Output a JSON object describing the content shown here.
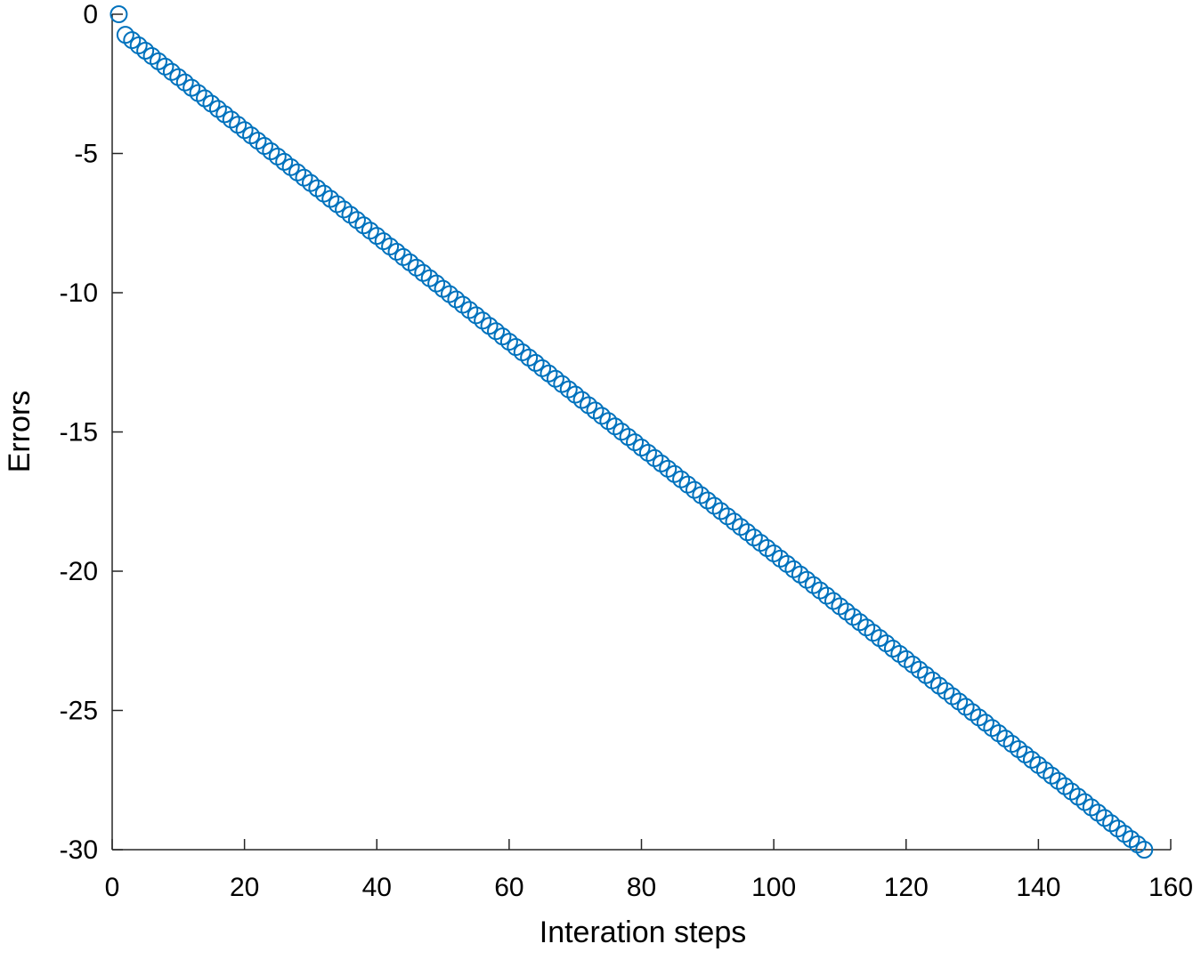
{
  "chart_data": {
    "type": "scatter",
    "xlabel": "Interation steps",
    "ylabel": "Errors",
    "color": "#0072bd",
    "x": [
      1,
      2,
      3,
      4,
      5,
      6,
      7,
      8,
      9,
      10,
      11,
      12,
      13,
      14,
      15,
      16,
      17,
      18,
      19,
      20,
      21,
      22,
      23,
      24,
      25,
      26,
      27,
      28,
      29,
      30,
      31,
      32,
      33,
      34,
      35,
      36,
      37,
      38,
      39,
      40,
      41,
      42,
      43,
      44,
      45,
      46,
      47,
      48,
      49,
      50,
      51,
      52,
      53,
      54,
      55,
      56,
      57,
      58,
      59,
      60,
      61,
      62,
      63,
      64,
      65,
      66,
      67,
      68,
      69,
      70,
      71,
      72,
      73,
      74,
      75,
      76,
      77,
      78,
      79,
      80,
      81,
      82,
      83,
      84,
      85,
      86,
      87,
      88,
      89,
      90,
      91,
      92,
      93,
      94,
      95,
      96,
      97,
      98,
      99,
      100,
      101,
      102,
      103,
      104,
      105,
      106,
      107,
      108,
      109,
      110,
      111,
      112,
      113,
      114,
      115,
      116,
      117,
      118,
      119,
      120,
      121,
      122,
      123,
      124,
      125,
      126,
      127,
      128,
      129,
      130,
      131,
      132,
      133,
      134,
      135,
      136,
      137,
      138,
      139,
      140,
      141,
      142,
      143,
      144,
      145,
      146,
      147,
      148,
      149,
      150,
      151,
      152,
      153,
      154,
      155,
      156
    ],
    "values": [
      0,
      -0.74,
      -0.93,
      -1.12,
      -1.31,
      -1.5,
      -1.69,
      -1.88,
      -2.07,
      -2.26,
      -2.45,
      -2.64,
      -2.83,
      -3.02,
      -3.21,
      -3.4,
      -3.59,
      -3.78,
      -3.97,
      -4.16,
      -4.35,
      -4.54,
      -4.73,
      -4.92,
      -5.11,
      -5.3,
      -5.49,
      -5.68,
      -5.87,
      -6.06,
      -6.25,
      -6.44,
      -6.63,
      -6.82,
      -7.01,
      -7.2,
      -7.39,
      -7.58,
      -7.77,
      -7.96,
      -8.15,
      -8.34,
      -8.53,
      -8.72,
      -8.91,
      -9.1,
      -9.29,
      -9.48,
      -9.67,
      -9.86,
      -10.05,
      -10.24,
      -10.43,
      -10.62,
      -10.81,
      -11,
      -11.19,
      -11.38,
      -11.57,
      -11.76,
      -11.95,
      -12.14,
      -12.33,
      -12.52,
      -12.71,
      -12.9,
      -13.09,
      -13.28,
      -13.47,
      -13.66,
      -13.85,
      -14.04,
      -14.23,
      -14.42,
      -14.61,
      -14.8,
      -14.99,
      -15.18,
      -15.37,
      -15.56,
      -15.75,
      -15.94,
      -16.13,
      -16.32,
      -16.51,
      -16.7,
      -16.89,
      -17.08,
      -17.27,
      -17.46,
      -17.65,
      -17.84,
      -18.03,
      -18.22,
      -18.41,
      -18.6,
      -18.79,
      -18.98,
      -19.17,
      -19.36,
      -19.55,
      -19.74,
      -19.93,
      -20.12,
      -20.31,
      -20.5,
      -20.69,
      -20.88,
      -21.07,
      -21.26,
      -21.45,
      -21.64,
      -21.83,
      -22.02,
      -22.21,
      -22.4,
      -22.59,
      -22.78,
      -22.97,
      -23.16,
      -23.35,
      -23.54,
      -23.73,
      -23.92,
      -24.11,
      -24.3,
      -24.49,
      -24.68,
      -24.87,
      -25.06,
      -25.25,
      -25.44,
      -25.63,
      -25.82,
      -26.01,
      -26.2,
      -26.39,
      -26.58,
      -26.77,
      -26.96,
      -27.15,
      -27.34,
      -27.53,
      -27.72,
      -27.91,
      -28.1,
      -28.29,
      -28.48,
      -28.67,
      -28.86,
      -29.05,
      -29.24,
      -29.43,
      -29.62,
      -29.81,
      -30
    ],
    "xlim": [
      0,
      160
    ],
    "xticks": [
      0,
      20,
      40,
      60,
      80,
      100,
      120,
      140,
      160
    ],
    "ylim": [
      -30,
      0
    ],
    "yticks": [
      -30,
      -25,
      -20,
      -15,
      -10,
      -5,
      0
    ]
  }
}
